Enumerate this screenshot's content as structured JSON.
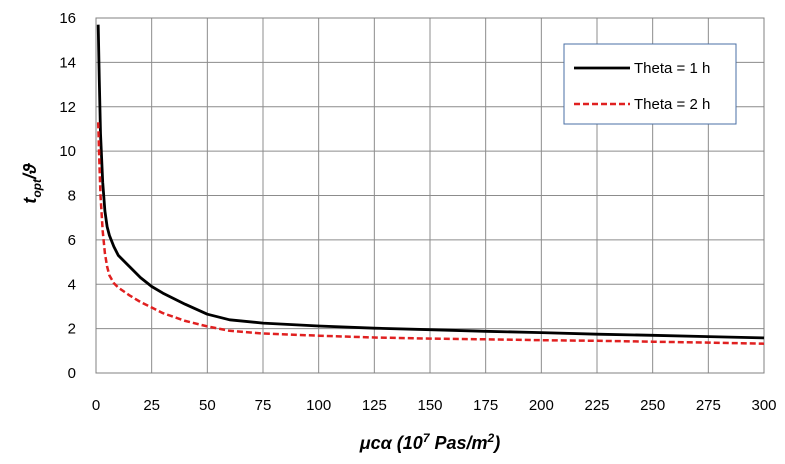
{
  "chart_data": {
    "type": "line",
    "title": "",
    "xlabel": {
      "base": "μcα (10",
      "sup": "7",
      "mid": " Pas/m",
      "sup2": "2",
      "end": ")"
    },
    "ylabel": {
      "base": "t",
      "sub": "opt",
      "end": "/ϑ"
    },
    "xlim": [
      0,
      300
    ],
    "ylim": [
      0,
      16
    ],
    "xticks": [
      0,
      25,
      50,
      75,
      100,
      125,
      150,
      175,
      200,
      225,
      250,
      275,
      300
    ],
    "yticks": [
      0,
      2,
      4,
      6,
      8,
      10,
      12,
      14,
      16
    ],
    "grid": true,
    "legend_position": "top-right",
    "series": [
      {
        "name": "Theta = 1 h",
        "color": "#000000",
        "dash": "solid",
        "x": [
          1,
          1.5,
          2,
          3,
          4,
          5,
          6,
          8,
          10,
          15,
          20,
          25,
          30,
          40,
          50,
          60,
          75,
          100,
          125,
          150,
          175,
          200,
          225,
          250,
          275,
          300
        ],
        "y": [
          15.7,
          13.2,
          10.8,
          8.6,
          7.3,
          6.6,
          6.2,
          5.7,
          5.3,
          4.8,
          4.3,
          3.9,
          3.6,
          3.1,
          2.65,
          2.4,
          2.25,
          2.12,
          2.02,
          1.95,
          1.88,
          1.82,
          1.75,
          1.7,
          1.64,
          1.58
        ]
      },
      {
        "name": "Theta = 2 h",
        "color": "#e02020",
        "dash": "dashed",
        "x": [
          1,
          1.5,
          2,
          3,
          4,
          5,
          6,
          8,
          10,
          15,
          20,
          25,
          30,
          40,
          50,
          60,
          75,
          100,
          125,
          150,
          175,
          200,
          225,
          250,
          275,
          300
        ],
        "y": [
          11.3,
          9.6,
          8.0,
          6.4,
          5.4,
          4.8,
          4.4,
          4.05,
          3.85,
          3.5,
          3.2,
          2.95,
          2.7,
          2.35,
          2.1,
          1.9,
          1.78,
          1.68,
          1.6,
          1.55,
          1.52,
          1.48,
          1.45,
          1.41,
          1.37,
          1.32
        ]
      }
    ]
  }
}
